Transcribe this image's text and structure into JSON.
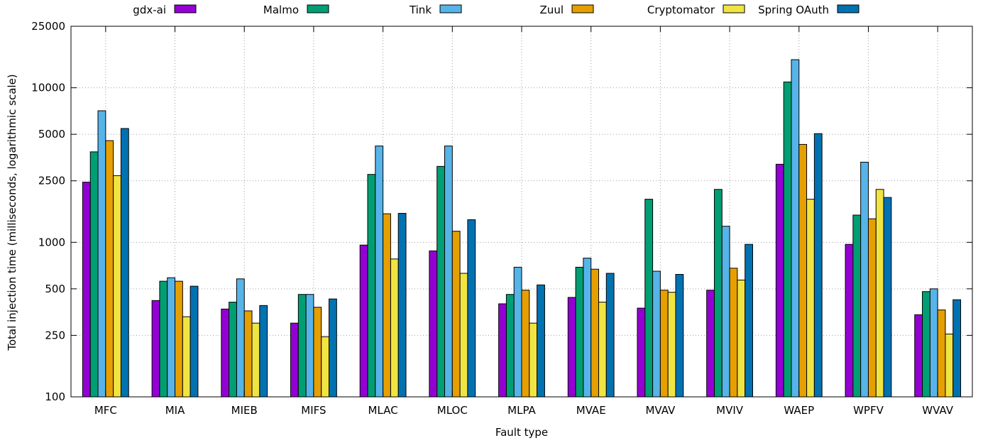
{
  "chart_data": {
    "type": "bar",
    "title": "",
    "xlabel": "Fault type",
    "ylabel": "Total injection time (milliseconds, logarithmic scale)",
    "yscale": "log",
    "ylim": [
      100,
      25000
    ],
    "yticks": [
      100,
      250,
      500,
      1000,
      2500,
      5000,
      10000,
      25000
    ],
    "grid": true,
    "legend_position": "top",
    "categories": [
      "MFC",
      "MIA",
      "MIEB",
      "MIFS",
      "MLAC",
      "MLOC",
      "MLPA",
      "MVAE",
      "MVAV",
      "MVIV",
      "WAEP",
      "WPFV",
      "WVAV"
    ],
    "series": [
      {
        "name": "gdx-ai",
        "color": "#9400d3",
        "values": [
          2450,
          420,
          370,
          300,
          960,
          880,
          400,
          440,
          375,
          490,
          3200,
          970,
          340
        ]
      },
      {
        "name": "Malmo",
        "color": "#009e73",
        "values": [
          3850,
          560,
          410,
          460,
          2750,
          3100,
          460,
          690,
          1900,
          2200,
          10900,
          1500,
          480
        ]
      },
      {
        "name": "Tink",
        "color": "#56b4e9",
        "values": [
          7100,
          590,
          580,
          460,
          4200,
          4200,
          690,
          790,
          650,
          1270,
          15200,
          3300,
          500
        ]
      },
      {
        "name": "Zuul",
        "color": "#e69f00",
        "values": [
          4550,
          560,
          360,
          380,
          1530,
          1180,
          490,
          670,
          490,
          680,
          4300,
          1420,
          365
        ]
      },
      {
        "name": "Cryptomator",
        "color": "#f0e442",
        "values": [
          2700,
          330,
          300,
          245,
          780,
          630,
          300,
          410,
          475,
          570,
          1900,
          2200,
          255
        ]
      },
      {
        "name": "Spring OAuth",
        "color": "#0072b2",
        "values": [
          5450,
          520,
          390,
          430,
          1540,
          1400,
          530,
          630,
          620,
          970,
          5050,
          1950,
          425
        ]
      }
    ]
  }
}
